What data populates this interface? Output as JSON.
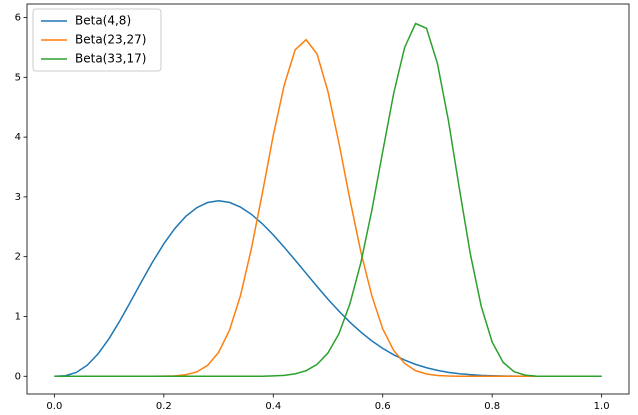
{
  "chart_data": {
    "type": "line",
    "x": [
      0,
      0.02,
      0.04,
      0.06,
      0.08,
      0.1,
      0.12,
      0.14,
      0.16,
      0.18,
      0.2,
      0.22,
      0.24,
      0.26,
      0.28,
      0.3,
      0.32,
      0.34,
      0.36,
      0.38,
      0.4,
      0.42,
      0.44,
      0.46,
      0.48,
      0.5,
      0.52,
      0.54,
      0.56,
      0.58,
      0.6,
      0.62,
      0.64,
      0.66,
      0.68,
      0.7,
      0.72,
      0.74,
      0.76,
      0.78,
      0.8,
      0.82,
      0.84,
      0.86,
      0.88,
      0.9,
      0.92,
      0.94,
      0.96,
      0.98,
      1
    ],
    "series": [
      {
        "name": "Beta(4,8)",
        "color": "#1f77b4",
        "values": [
          0,
          0.009,
          0.064,
          0.185,
          0.377,
          0.631,
          0.932,
          1.26,
          1.595,
          1.919,
          2.215,
          2.47,
          2.673,
          2.819,
          2.906,
          2.935,
          2.908,
          2.83,
          2.709,
          2.551,
          2.365,
          2.159,
          1.942,
          1.722,
          1.501,
          1.289,
          1.09,
          0.905,
          0.739,
          0.592,
          0.467,
          0.359,
          0.271,
          0.199,
          0.143,
          0.099,
          0.066,
          0.043,
          0.027,
          0.016,
          0.009,
          0.005,
          0.002,
          0.001,
          0,
          0,
          0,
          0,
          0,
          0,
          0
        ]
      },
      {
        "name": "Beta(23,27)",
        "color": "#ff7f0e",
        "values": [
          0,
          0,
          0,
          0,
          0,
          0,
          0,
          0,
          0,
          0,
          0.002,
          0.007,
          0.025,
          0.072,
          0.181,
          0.398,
          0.77,
          1.347,
          2.135,
          3.06,
          4.03,
          4.87,
          5.46,
          5.63,
          5.39,
          4.76,
          3.9,
          2.96,
          2.08,
          1.35,
          0.793,
          0.431,
          0.214,
          0.094,
          0.038,
          0.013,
          0.004,
          0.001,
          0,
          0,
          0,
          0,
          0,
          0,
          0,
          0,
          0,
          0,
          0,
          0,
          0
        ]
      },
      {
        "name": "Beta(33,17)",
        "color": "#2ca02c",
        "values": [
          0,
          0,
          0,
          0,
          0,
          0,
          0,
          0,
          0,
          0,
          0,
          0,
          0,
          0,
          0,
          0,
          0,
          0,
          0,
          0,
          0.006,
          0.016,
          0.04,
          0.093,
          0.198,
          0.391,
          0.712,
          1.21,
          1.9,
          2.77,
          3.76,
          4.73,
          5.5,
          5.9,
          5.82,
          5.23,
          4.28,
          3.14,
          2.05,
          1.17,
          0.572,
          0.233,
          0.077,
          0.019,
          0.003,
          0,
          0,
          0,
          0,
          0,
          0
        ]
      }
    ],
    "xlim": [
      -0.05,
      1.05
    ],
    "ylim": [
      -0.2965,
      6.2265
    ],
    "xticks": [
      {
        "value": 0,
        "label": "0.0"
      },
      0.2,
      0.4,
      0.6,
      0.8,
      {
        "value": 1,
        "label": "1.0"
      }
    ],
    "yticks": [
      0,
      1,
      2,
      3,
      4,
      5,
      6
    ],
    "legend": "upper left"
  }
}
